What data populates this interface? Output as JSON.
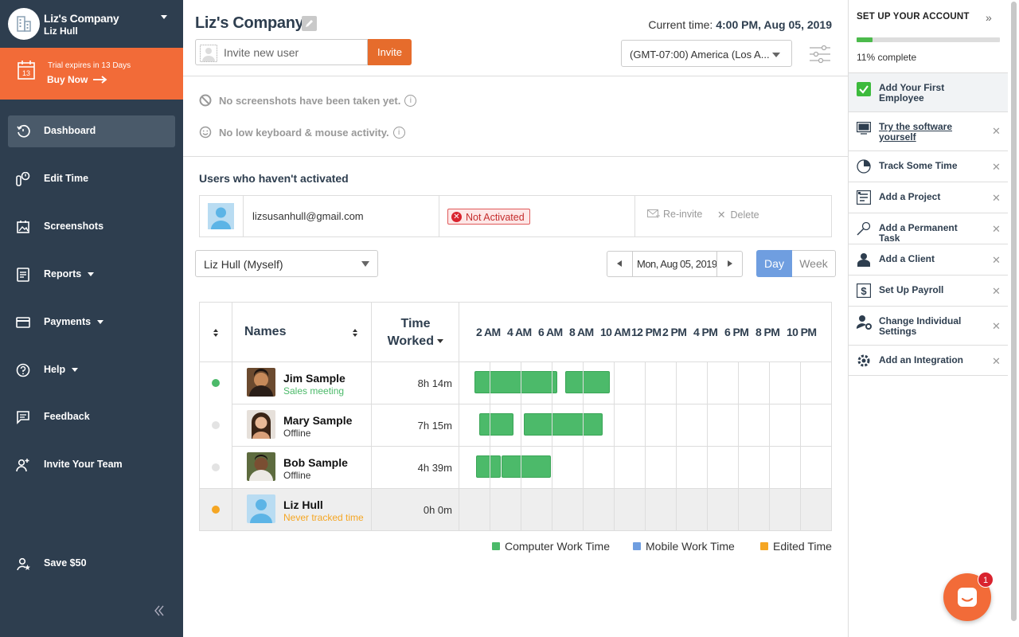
{
  "sidebar": {
    "company": "Liz's Company",
    "user": "Liz Hull",
    "trial_text": "Trial expires in 13 Days",
    "buy_now": "Buy Now",
    "calendar_day": "13",
    "nav": [
      {
        "label": "Dashboard",
        "icon": "dashboard-icon",
        "active": true
      },
      {
        "label": "Edit Time",
        "icon": "edit-time-icon"
      },
      {
        "label": "Screenshots",
        "icon": "screenshots-icon"
      },
      {
        "label": "Reports",
        "icon": "reports-icon"
      },
      {
        "label": "Payments",
        "icon": "payments-icon"
      },
      {
        "label": "Help",
        "icon": "help-icon"
      },
      {
        "label": "Feedback",
        "icon": "feedback-icon"
      },
      {
        "label": "Invite Your Team",
        "icon": "invite-team-icon"
      },
      {
        "label": "Save $50",
        "icon": "save-icon"
      }
    ]
  },
  "header": {
    "title": "Liz's Company",
    "current_time_label": "Current time:",
    "current_time_value": "4:00 PM, Aug 05, 2019",
    "invite_placeholder": "Invite new user",
    "invite_button": "Invite",
    "timezone": "(GMT-07:00) America (Los A..."
  },
  "notices": {
    "screenshots": "No screenshots have been taken yet.",
    "activity": "No low keyboard & mouse activity."
  },
  "not_activated": {
    "title": "Users who haven't activated",
    "email": "lizsusanhull@gmail.com",
    "status": "Not Activated",
    "reinvite": "Re-invite",
    "delete": "Delete"
  },
  "filters": {
    "user_select": "Liz Hull (Myself)",
    "date": "Mon, Aug 05, 2019",
    "day": "Day",
    "week": "Week"
  },
  "timeline": {
    "names_header": "Names",
    "time_header_1": "Time",
    "time_header_2": "Worked",
    "hours": [
      "2 AM",
      "4 AM",
      "6 AM",
      "8 AM",
      "10 AM",
      "12 PM",
      "2 PM",
      "4 PM",
      "6 PM",
      "8 PM",
      "10 PM"
    ],
    "rows": [
      {
        "name": "Jim Sample",
        "status": "Sales meeting",
        "time": "8h 14m",
        "dot": "#4cba6a",
        "status_color": "#4cba6a"
      },
      {
        "name": "Mary Sample",
        "status": "Offline",
        "time": "7h 15m",
        "dot": "#e3e3e3",
        "status_color": "#333333"
      },
      {
        "name": "Bob Sample",
        "status": "Offline",
        "time": "4h 39m",
        "dot": "#e3e3e3",
        "status_color": "#333333"
      },
      {
        "name": "Liz Hull",
        "status": "Never tracked time",
        "time": "0h 0m",
        "dot": "#f5a623",
        "status_color": "#f5a623"
      }
    ]
  },
  "legend": {
    "computer": "Computer Work Time",
    "mobile": "Mobile Work Time",
    "edited": "Edited Time",
    "colors": {
      "computer": "#4cba6a",
      "mobile": "#6f9ee0",
      "edited": "#f5a623"
    }
  },
  "setup": {
    "title": "SET UP YOUR ACCOUNT",
    "progress_percent": 11,
    "progress_text": "11% complete",
    "steps": [
      {
        "label": "Add Your First Employee",
        "icon": "check-icon",
        "done": true
      },
      {
        "label": "Try the software yourself",
        "icon": "computer-icon",
        "link": true
      },
      {
        "label": "Track Some Time",
        "icon": "clock-icon"
      },
      {
        "label": "Add a Project",
        "icon": "project-icon"
      },
      {
        "label": "Add a Permanent Task",
        "icon": "pin-icon"
      },
      {
        "label": "Add a Client",
        "icon": "client-icon"
      },
      {
        "label": "Set Up Payroll",
        "icon": "dollar-icon"
      },
      {
        "label": "Change Individual Settings",
        "icon": "user-settings-icon"
      },
      {
        "label": "Add an Integration",
        "icon": "integration-icon"
      }
    ]
  },
  "chat_badge": "1"
}
